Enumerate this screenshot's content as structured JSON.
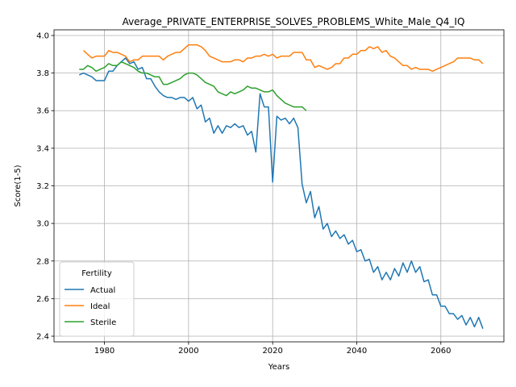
{
  "chart_data": {
    "type": "line",
    "title": "Average_PRIVATE_ENTERPRISE_SOLVES_PROBLEMS_White_Male_Q4_IQ",
    "xlabel": "Years",
    "ylabel": "Score(1-5)",
    "xlim": [
      1968,
      2075
    ],
    "ylim": [
      2.37,
      4.03
    ],
    "xticks": [
      1980,
      2000,
      2020,
      2040,
      2060
    ],
    "yticks": [
      2.4,
      2.6,
      2.8,
      3.0,
      3.2,
      3.4,
      3.6,
      3.8,
      4.0
    ],
    "grid": true,
    "legend": {
      "title": "Fertility",
      "placement": "lower-left"
    },
    "series": [
      {
        "name": "Actual",
        "color": "#1f77b4",
        "x": [
          1974,
          1975,
          1976,
          1977,
          1978,
          1979,
          1980,
          1981,
          1982,
          1983,
          1984,
          1985,
          1986,
          1987,
          1988,
          1989,
          1990,
          1991,
          1992,
          1993,
          1994,
          1995,
          1996,
          1997,
          1998,
          1999,
          2000,
          2001,
          2002,
          2003,
          2004,
          2005,
          2006,
          2007,
          2008,
          2009,
          2010,
          2011,
          2012,
          2013,
          2014,
          2015,
          2016,
          2017,
          2018,
          2019,
          2020,
          2021,
          2022,
          2023,
          2024,
          2025,
          2026,
          2027,
          2028,
          2029,
          2030,
          2031,
          2032,
          2033,
          2034,
          2035,
          2036,
          2037,
          2038,
          2039,
          2040,
          2041,
          2042,
          2043,
          2044,
          2045,
          2046,
          2047,
          2048,
          2049,
          2050,
          2051,
          2052,
          2053,
          2054,
          2055,
          2056,
          2057,
          2058,
          2059,
          2060,
          2061,
          2062,
          2063,
          2064,
          2065,
          2066,
          2067,
          2068,
          2069,
          2070
        ],
        "values": [
          3.79,
          3.8,
          3.79,
          3.78,
          3.76,
          3.76,
          3.76,
          3.81,
          3.81,
          3.84,
          3.86,
          3.88,
          3.85,
          3.86,
          3.82,
          3.83,
          3.77,
          3.77,
          3.73,
          3.7,
          3.68,
          3.67,
          3.67,
          3.66,
          3.67,
          3.67,
          3.65,
          3.67,
          3.61,
          3.63,
          3.54,
          3.56,
          3.48,
          3.52,
          3.48,
          3.52,
          3.51,
          3.53,
          3.51,
          3.52,
          3.47,
          3.49,
          3.38,
          3.69,
          3.62,
          3.62,
          3.22,
          3.57,
          3.55,
          3.56,
          3.53,
          3.56,
          3.51,
          3.21,
          3.11,
          3.17,
          3.03,
          3.09,
          2.97,
          3.0,
          2.93,
          2.96,
          2.92,
          2.94,
          2.89,
          2.91,
          2.85,
          2.86,
          2.8,
          2.81,
          2.74,
          2.77,
          2.7,
          2.74,
          2.7,
          2.76,
          2.72,
          2.79,
          2.74,
          2.8,
          2.74,
          2.77,
          2.69,
          2.7,
          2.62,
          2.62,
          2.56,
          2.56,
          2.52,
          2.52,
          2.49,
          2.51,
          2.46,
          2.5,
          2.45,
          2.5,
          2.44
        ]
      },
      {
        "name": "Ideal",
        "color": "#ff7f0e",
        "x": [
          1975,
          1976,
          1977,
          1978,
          1979,
          1980,
          1981,
          1982,
          1983,
          1984,
          1985,
          1986,
          1987,
          1988,
          1989,
          1990,
          1991,
          1992,
          1993,
          1994,
          1995,
          1996,
          1997,
          1998,
          1999,
          2000,
          2001,
          2002,
          2003,
          2004,
          2005,
          2006,
          2007,
          2008,
          2009,
          2010,
          2011,
          2012,
          2013,
          2014,
          2015,
          2016,
          2017,
          2018,
          2019,
          2020,
          2021,
          2022,
          2023,
          2024,
          2025,
          2026,
          2027,
          2028,
          2029,
          2030,
          2031,
          2032,
          2033,
          2034,
          2035,
          2036,
          2037,
          2038,
          2039,
          2040,
          2041,
          2042,
          2043,
          2044,
          2045,
          2046,
          2047,
          2048,
          2049,
          2050,
          2051,
          2052,
          2053,
          2054,
          2055,
          2056,
          2057,
          2058,
          2059,
          2060,
          2061,
          2062,
          2063,
          2064,
          2065,
          2066,
          2067,
          2068,
          2069,
          2070
        ],
        "values": [
          3.92,
          3.9,
          3.88,
          3.89,
          3.89,
          3.89,
          3.92,
          3.91,
          3.91,
          3.9,
          3.89,
          3.86,
          3.87,
          3.87,
          3.89,
          3.89,
          3.89,
          3.89,
          3.89,
          3.87,
          3.89,
          3.9,
          3.91,
          3.91,
          3.93,
          3.95,
          3.95,
          3.95,
          3.94,
          3.92,
          3.89,
          3.88,
          3.87,
          3.86,
          3.86,
          3.86,
          3.87,
          3.87,
          3.86,
          3.88,
          3.88,
          3.89,
          3.89,
          3.9,
          3.89,
          3.9,
          3.88,
          3.89,
          3.89,
          3.89,
          3.91,
          3.91,
          3.91,
          3.87,
          3.87,
          3.83,
          3.84,
          3.83,
          3.82,
          3.83,
          3.85,
          3.85,
          3.88,
          3.88,
          3.9,
          3.9,
          3.92,
          3.92,
          3.94,
          3.93,
          3.94,
          3.91,
          3.92,
          3.89,
          3.88,
          3.86,
          3.84,
          3.84,
          3.82,
          3.83,
          3.82,
          3.82,
          3.82,
          3.81,
          3.82,
          3.83,
          3.84,
          3.85,
          3.86,
          3.88,
          3.88,
          3.88,
          3.88,
          3.87,
          3.87,
          3.85
        ]
      },
      {
        "name": "Sterile",
        "color": "#2ca02c",
        "x": [
          1974,
          1975,
          1976,
          1977,
          1978,
          1979,
          1980,
          1981,
          1982,
          1983,
          1984,
          1985,
          1986,
          1987,
          1988,
          1989,
          1990,
          1991,
          1992,
          1993,
          1994,
          1995,
          1996,
          1997,
          1998,
          1999,
          2000,
          2001,
          2002,
          2003,
          2004,
          2005,
          2006,
          2007,
          2008,
          2009,
          2010,
          2011,
          2012,
          2013,
          2014,
          2015,
          2016,
          2017,
          2018,
          2019,
          2020,
          2021,
          2022,
          2023,
          2024,
          2025,
          2026,
          2027,
          2028
        ],
        "values": [
          3.82,
          3.82,
          3.84,
          3.83,
          3.81,
          3.82,
          3.83,
          3.85,
          3.84,
          3.84,
          3.86,
          3.85,
          3.84,
          3.83,
          3.81,
          3.8,
          3.8,
          3.79,
          3.78,
          3.78,
          3.74,
          3.74,
          3.75,
          3.76,
          3.77,
          3.79,
          3.8,
          3.8,
          3.79,
          3.77,
          3.75,
          3.74,
          3.73,
          3.7,
          3.69,
          3.68,
          3.7,
          3.69,
          3.7,
          3.71,
          3.73,
          3.72,
          3.72,
          3.71,
          3.7,
          3.7,
          3.71,
          3.68,
          3.66,
          3.64,
          3.63,
          3.62,
          3.62,
          3.62,
          3.6
        ]
      }
    ]
  }
}
